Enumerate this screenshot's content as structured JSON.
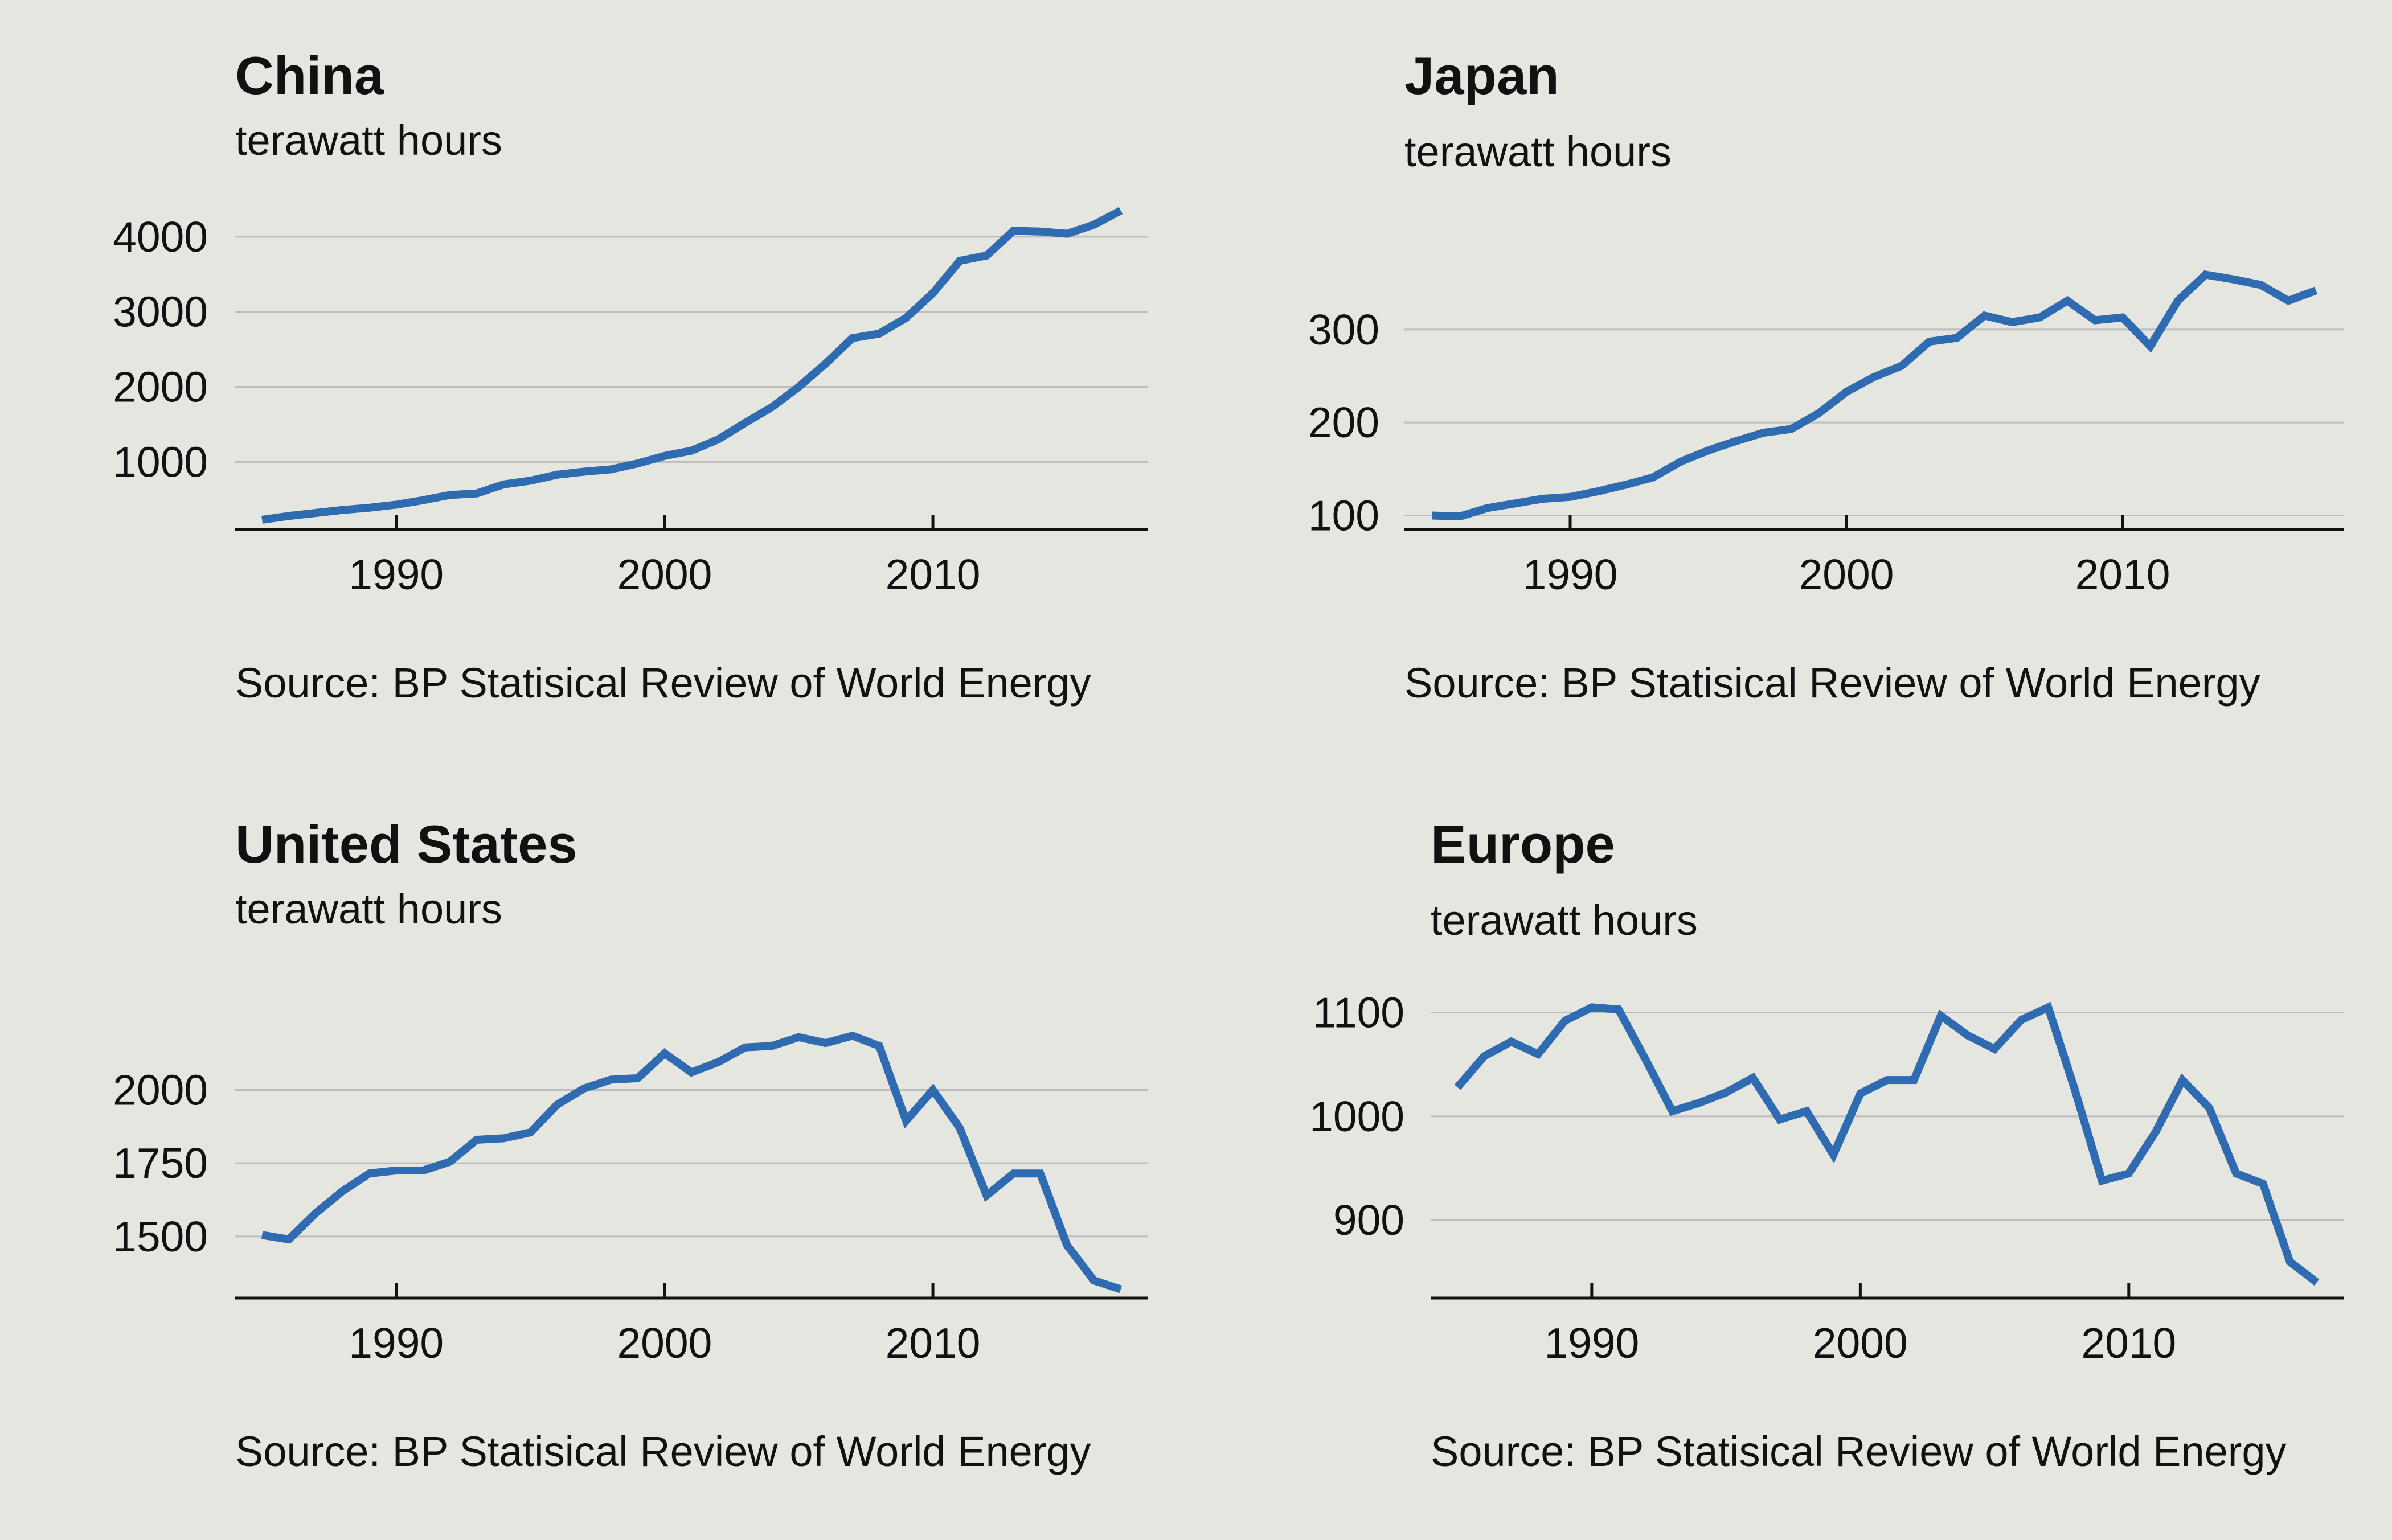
{
  "colors": {
    "background": "#e6e6e1",
    "line": "#2f6bb0",
    "gridline": "#bdbdbd",
    "axis": "#111111",
    "text": "#111111"
  },
  "chart_data": [
    {
      "type": "line",
      "title": "China",
      "ylabel": "terawatt hours",
      "source": "Source: BP Statisical Review of World Energy",
      "xlim": [
        1984,
        2018
      ],
      "ylim": [
        100,
        4500
      ],
      "xticks": [
        1990,
        2000,
        2010
      ],
      "yticks": [
        1000,
        2000,
        3000,
        4000
      ],
      "grid": true,
      "x": [
        1985,
        1986,
        1987,
        1988,
        1989,
        1990,
        1991,
        1992,
        1993,
        1994,
        1995,
        1996,
        1997,
        1998,
        1999,
        2000,
        2001,
        2002,
        2003,
        2004,
        2005,
        2006,
        2007,
        2008,
        2009,
        2010,
        2011,
        2012,
        2013,
        2014,
        2015,
        2016,
        2017
      ],
      "y": [
        230,
        280,
        320,
        360,
        390,
        430,
        490,
        560,
        580,
        700,
        750,
        830,
        870,
        900,
        980,
        1080,
        1150,
        1300,
        1520,
        1730,
        2000,
        2310,
        2650,
        2710,
        2920,
        3250,
        3680,
        3750,
        4080,
        4070,
        4040,
        4160,
        4350
      ]
    },
    {
      "type": "line",
      "title": "Japan",
      "ylabel": "terawatt hours",
      "source": "Source: BP Statisical Review of World Energy",
      "xlim": [
        1984,
        2018
      ],
      "ylim": [
        85,
        385
      ],
      "xticks": [
        1990,
        2000,
        2010
      ],
      "yticks": [
        100,
        200,
        300
      ],
      "grid": true,
      "x": [
        1985,
        1986,
        1987,
        1988,
        1989,
        1990,
        1991,
        1992,
        1993,
        1994,
        1995,
        1996,
        1997,
        1998,
        1999,
        2000,
        2001,
        2002,
        2003,
        2004,
        2005,
        2006,
        2007,
        2008,
        2009,
        2010,
        2011,
        2012,
        2013,
        2014,
        2015,
        2016,
        2017
      ],
      "y": [
        100,
        99,
        108,
        113,
        118,
        120,
        126,
        133,
        141,
        158,
        170,
        180,
        189,
        193,
        210,
        233,
        249,
        261,
        287,
        291,
        315,
        308,
        313,
        331,
        310,
        313,
        282,
        331,
        359,
        354,
        348,
        331,
        342
      ]
    },
    {
      "type": "line",
      "title": "United States",
      "ylabel": "terawatt hours",
      "source": "Source: BP Statisical Review of World Energy",
      "xlim": [
        1984,
        2018
      ],
      "ylim": [
        1290,
        2300
      ],
      "xticks": [
        1990,
        2000,
        2010
      ],
      "yticks": [
        1500,
        1750,
        2000
      ],
      "grid": true,
      "x": [
        1985,
        1986,
        1987,
        1988,
        1989,
        1990,
        1991,
        1992,
        1993,
        1994,
        1995,
        1996,
        1997,
        1998,
        1999,
        2000,
        2001,
        2002,
        2003,
        2004,
        2005,
        2006,
        2007,
        2008,
        2009,
        2010,
        2011,
        2012,
        2013,
        2014,
        2015,
        2016,
        2017
      ],
      "y": [
        1505,
        1490,
        1580,
        1655,
        1715,
        1725,
        1725,
        1755,
        1830,
        1835,
        1855,
        1950,
        2005,
        2035,
        2040,
        2125,
        2060,
        2095,
        2145,
        2150,
        2180,
        2160,
        2185,
        2150,
        1895,
        2000,
        1870,
        1640,
        1715,
        1715,
        1470,
        1350,
        1320
      ]
    },
    {
      "type": "line",
      "title": "Europe",
      "ylabel": "terawatt hours",
      "source": "Source: BP Statisical Review of World Energy",
      "xlim": [
        1984,
        2018
      ],
      "ylim": [
        825,
        1165
      ],
      "xticks": [
        1990,
        2000,
        2010
      ],
      "yticks": [
        900,
        1000,
        1100
      ],
      "grid": true,
      "x": [
        1985,
        1986,
        1987,
        1988,
        1989,
        1990,
        1991,
        1992,
        1993,
        1994,
        1995,
        1996,
        1997,
        1998,
        1999,
        2000,
        2001,
        2002,
        2003,
        2004,
        2005,
        2006,
        2007,
        2008,
        2009,
        2010,
        2011,
        2012,
        2013,
        2014,
        2015,
        2016,
        2017
      ],
      "y": [
        1028,
        1058,
        1072,
        1060,
        1092,
        1105,
        1103,
        1055,
        1005,
        1013,
        1023,
        1037,
        997,
        1005,
        963,
        1022,
        1035,
        1035,
        1097,
        1078,
        1065,
        1093,
        1105,
        1025,
        938,
        945,
        985,
        1035,
        1008,
        945,
        935,
        860,
        840
      ]
    }
  ]
}
